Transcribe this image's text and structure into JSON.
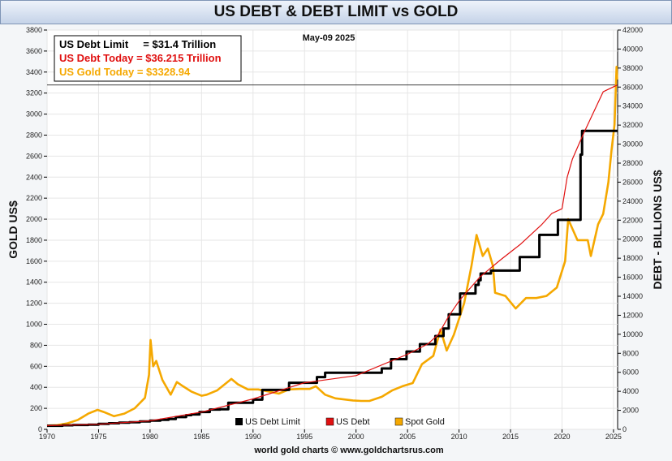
{
  "title": "US DEBT & DEBT LIMIT vs GOLD",
  "date_label": "May-09  2025",
  "info_box": {
    "line1": "US Debt Limit     = $31.4 Trillion",
    "line2": "US Debt Today = $36.215 Trillion",
    "line3": "US Gold Today = $3328.94"
  },
  "footer": "world gold charts © www.goldchartsrus.com",
  "colors": {
    "debt_limit": "#000000",
    "debt": "#e01010",
    "gold": "#f5a800",
    "line2_text": "#e01010",
    "line3_text": "#f5a800"
  },
  "chart_data": {
    "type": "line",
    "title": "US DEBT & DEBT LIMIT vs GOLD",
    "ylabel_left": "GOLD US$",
    "ylabel_right": "DEBT - BILLIONS US$",
    "xlim": [
      1970,
      2025.4
    ],
    "ylim_left": [
      0,
      3800
    ],
    "ylim_right": [
      0,
      42000
    ],
    "x_ticks": [
      1970,
      1975,
      1980,
      1985,
      1990,
      1995,
      2000,
      2005,
      2010,
      2015,
      2020,
      2025
    ],
    "y_left_ticks": [
      0,
      200,
      400,
      600,
      800,
      1000,
      1200,
      1400,
      1600,
      1800,
      2000,
      2200,
      2400,
      2600,
      2800,
      3000,
      3200,
      3400,
      3600,
      3800
    ],
    "y_right_ticks": [
      0,
      2000,
      4000,
      6000,
      8000,
      10000,
      12000,
      14000,
      16000,
      18000,
      20000,
      22000,
      24000,
      26000,
      28000,
      30000,
      32000,
      34000,
      36000,
      38000,
      40000,
      42000
    ],
    "reference_line": {
      "axis": "right",
      "value": 36215
    },
    "legend": [
      "US Debt Limit",
      "US Debt",
      "Spot Gold"
    ],
    "series": [
      {
        "name": "US Debt Limit",
        "axis": "right",
        "step": true,
        "x": [
          1970,
          1971.5,
          1972.5,
          1974,
          1975,
          1976,
          1977,
          1978,
          1979,
          1980,
          1981,
          1981.8,
          1982.5,
          1983.5,
          1984,
          1984.8,
          1985.8,
          1986.8,
          1987.6,
          1990,
          1990.9,
          1993.5,
          1996.2,
          1997,
          2002.5,
          2003.4,
          2004.9,
          2006.2,
          2007.7,
          2008.5,
          2009,
          2010.1,
          2011.6,
          2011.9,
          2012.1,
          2013.1,
          2015.9,
          2017.8,
          2019.6,
          2021.8,
          2021.95,
          2025.4
        ],
        "values": [
          377,
          430,
          465,
          495,
          577,
          636,
          700,
          752,
          830,
          925,
          999,
          1080,
          1290,
          1490,
          1573,
          1824,
          2079,
          2111,
          2800,
          3123,
          4145,
          4900,
          5500,
          5950,
          6400,
          7384,
          8184,
          8965,
          9815,
          10615,
          12104,
          14294,
          15194,
          15694,
          16394,
          16699,
          18113,
          20456,
          22030,
          28900,
          31400,
          31400
        ]
      },
      {
        "name": "US Debt",
        "axis": "right",
        "x": [
          1970,
          1975,
          1980,
          1985,
          1990,
          1995,
          2000,
          2005,
          2007,
          2008,
          2009,
          2010,
          2012,
          2014,
          2016,
          2018,
          2019,
          2020,
          2020.5,
          2021,
          2022,
          2023,
          2024,
          2025.35
        ],
        "values": [
          380,
          540,
          900,
          1820,
          3200,
          4900,
          5650,
          7900,
          9000,
          10000,
          11900,
          13500,
          16000,
          17800,
          19500,
          21500,
          22700,
          23200,
          26500,
          28400,
          30900,
          33200,
          35500,
          36215
        ]
      },
      {
        "name": "Spot Gold",
        "axis": "left",
        "x": [
          1970,
          1971,
          1972,
          1973,
          1973.5,
          1974,
          1974.9,
          1975.5,
          1976.5,
          1977.5,
          1978.5,
          1979.5,
          1979.9,
          1980.05,
          1980.3,
          1980.6,
          1981.2,
          1982,
          1982.6,
          1983.2,
          1984,
          1985,
          1985.5,
          1986.5,
          1987.9,
          1988.5,
          1989.5,
          1990.5,
          1991.5,
          1992.5,
          1993.5,
          1994.5,
          1995.5,
          1996.1,
          1997,
          1998,
          1999.7,
          2000.5,
          2001.3,
          2002.5,
          2003.5,
          2004.5,
          2005.5,
          2006.4,
          2007.5,
          2008.2,
          2008.8,
          2009.5,
          2010.5,
          2011.2,
          2011.7,
          2012.3,
          2012.8,
          2013.3,
          2013.5,
          2014.5,
          2015.5,
          2016.5,
          2017.5,
          2018.5,
          2019.5,
          2020.3,
          2020.6,
          2021.5,
          2022.5,
          2022.8,
          2023.5,
          2024,
          2024.5,
          2024.8,
          2025.1,
          2025.3,
          2025.35
        ],
        "values": [
          36,
          40,
          58,
          90,
          120,
          150,
          185,
          165,
          125,
          150,
          200,
          300,
          520,
          850,
          600,
          650,
          470,
          330,
          450,
          410,
          360,
          320,
          330,
          370,
          480,
          430,
          380,
          380,
          360,
          340,
          380,
          385,
          385,
          410,
          330,
          295,
          275,
          270,
          270,
          310,
          370,
          410,
          440,
          620,
          700,
          950,
          750,
          900,
          1200,
          1550,
          1850,
          1650,
          1720,
          1550,
          1300,
          1270,
          1150,
          1250,
          1250,
          1270,
          1350,
          1600,
          2000,
          1800,
          1800,
          1650,
          1950,
          2050,
          2350,
          2650,
          2900,
          3450,
          3329
        ]
      }
    ]
  }
}
